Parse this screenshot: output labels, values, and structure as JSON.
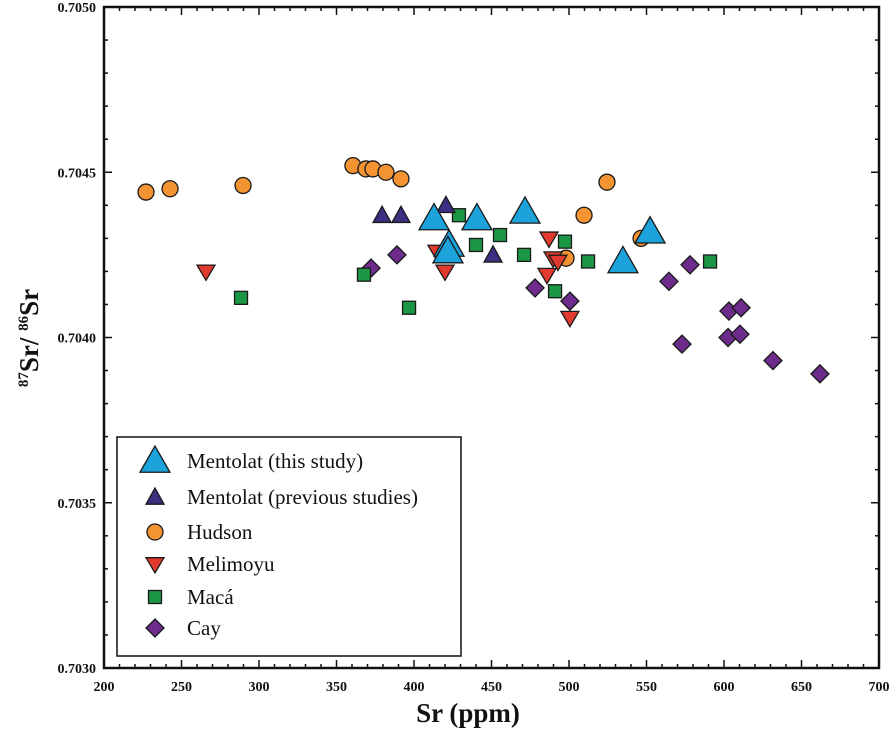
{
  "chart_data": {
    "type": "scatter",
    "title": "",
    "xlabel": "Sr (ppm)",
    "ylabel": {
      "pre_sup": "87",
      "pre_base": "Sr/ ",
      "post_sup": "86",
      "post_base": "Sr"
    },
    "xlim": [
      200,
      700
    ],
    "ylim": [
      0.703,
      0.705
    ],
    "x_ticks": [
      "200",
      "250",
      "300",
      "350",
      "400",
      "450",
      "500",
      "550",
      "600",
      "650",
      "700"
    ],
    "x_tick_values": [
      200,
      250,
      300,
      350,
      400,
      450,
      500,
      550,
      600,
      650,
      700
    ],
    "x_minor_step": 10,
    "y_ticks": [
      "0.7030",
      "0.7035",
      "0.7040",
      "0.7045",
      "0.7050"
    ],
    "y_tick_values": [
      0.703,
      0.7035,
      0.704,
      0.7045,
      0.705
    ],
    "y_minor_step": 0.0001,
    "grid": false,
    "legend_position": "bottom-left",
    "series": [
      {
        "name": "Mentolat (this study)",
        "marker": "triangle-up-large",
        "color": "#1ca3dc",
        "points": [
          [
            412.9,
            0.70436
          ],
          [
            440.6,
            0.70436
          ],
          [
            471.6,
            0.70438
          ],
          [
            422.6,
            0.70428
          ],
          [
            421.9,
            0.70426
          ],
          [
            552.3,
            0.70432
          ],
          [
            534.8,
            0.70423
          ]
        ]
      },
      {
        "name": "Mentolat (previous studies)",
        "marker": "triangle-up",
        "color": "#3b2f82",
        "points": [
          [
            379.4,
            0.70437
          ],
          [
            391.6,
            0.70437
          ],
          [
            420.6,
            0.7044
          ],
          [
            451.0,
            0.70425
          ]
        ]
      },
      {
        "name": "Hudson",
        "marker": "circle",
        "color": "#f39332",
        "points": [
          [
            227.1,
            0.70444
          ],
          [
            242.6,
            0.70445
          ],
          [
            289.7,
            0.70446
          ],
          [
            360.6,
            0.70452
          ],
          [
            369.0,
            0.70451
          ],
          [
            373.5,
            0.70451
          ],
          [
            381.9,
            0.7045
          ],
          [
            391.6,
            0.70448
          ],
          [
            509.7,
            0.70437
          ],
          [
            524.5,
            0.70447
          ],
          [
            546.5,
            0.7043
          ],
          [
            498.1,
            0.70424
          ]
        ]
      },
      {
        "name": "Melimoyu",
        "marker": "triangle-down",
        "color": "#e23a2e",
        "points": [
          [
            265.8,
            0.7042
          ],
          [
            414.8,
            0.70426
          ],
          [
            420.0,
            0.7042
          ],
          [
            487.1,
            0.7043
          ],
          [
            489.7,
            0.70424
          ],
          [
            492.9,
            0.70423
          ],
          [
            485.8,
            0.70419
          ],
          [
            500.6,
            0.70406
          ]
        ]
      },
      {
        "name": "Macá",
        "marker": "square",
        "color": "#1a9645",
        "points": [
          [
            288.4,
            0.70412
          ],
          [
            367.7,
            0.70419
          ],
          [
            396.8,
            0.70409
          ],
          [
            429.0,
            0.70437
          ],
          [
            440.0,
            0.70428
          ],
          [
            455.5,
            0.70431
          ],
          [
            471.0,
            0.70425
          ],
          [
            491.0,
            0.70414
          ],
          [
            497.4,
            0.70429
          ],
          [
            512.3,
            0.70423
          ],
          [
            591.0,
            0.70423
          ]
        ]
      },
      {
        "name": "Cay",
        "marker": "diamond",
        "color": "#6d2c8c",
        "points": [
          [
            372.3,
            0.70421
          ],
          [
            389.0,
            0.70425
          ],
          [
            478.1,
            0.70415
          ],
          [
            500.6,
            0.70411
          ],
          [
            564.5,
            0.70417
          ],
          [
            578.1,
            0.70422
          ],
          [
            603.2,
            0.70408
          ],
          [
            611.0,
            0.70409
          ],
          [
            602.6,
            0.704
          ],
          [
            610.3,
            0.70401
          ],
          [
            572.9,
            0.70398
          ],
          [
            631.6,
            0.70393
          ],
          [
            661.9,
            0.70389
          ]
        ]
      }
    ]
  }
}
